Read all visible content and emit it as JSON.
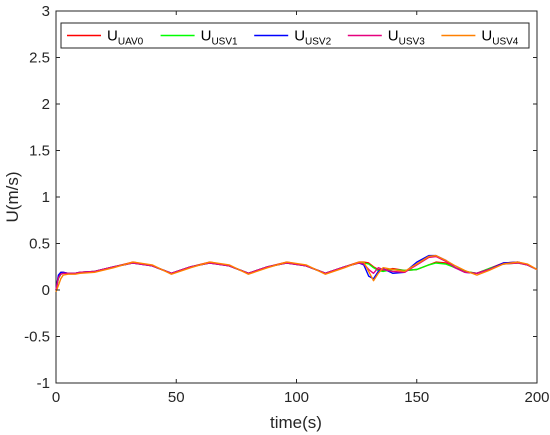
{
  "chart_data": {
    "type": "line",
    "xlabel": "time(s)",
    "ylabel": "U(m/s)",
    "xlim": [
      0,
      200
    ],
    "ylim": [
      -1,
      3
    ],
    "x_ticks": [
      "0",
      "50",
      "100",
      "150",
      "200"
    ],
    "y_ticks": [
      "-1",
      "-0.5",
      "0",
      "0.5",
      "1",
      "1.5",
      "2",
      "2.5",
      "3"
    ],
    "grid": false,
    "legend_placement": "top (horizontal)",
    "series": [
      {
        "name": "U",
        "subscript": "UAV0",
        "color": "#ff0000",
        "x": [
          0,
          1,
          2,
          3,
          5,
          8,
          10,
          16,
          24,
          32,
          40,
          48,
          56,
          64,
          72,
          80,
          88,
          96,
          104,
          112,
          120,
          126,
          128,
          130,
          132,
          134,
          136,
          140,
          145,
          150,
          155,
          158,
          162,
          166,
          170,
          175,
          180,
          186,
          192,
          196,
          200
        ],
        "y": [
          0.0,
          0.15,
          0.19,
          0.19,
          0.18,
          0.18,
          0.19,
          0.2,
          0.25,
          0.3,
          0.26,
          0.18,
          0.25,
          0.3,
          0.26,
          0.18,
          0.25,
          0.3,
          0.26,
          0.18,
          0.25,
          0.3,
          0.3,
          0.29,
          0.25,
          0.22,
          0.21,
          0.23,
          0.21,
          0.22,
          0.27,
          0.3,
          0.29,
          0.24,
          0.2,
          0.18,
          0.23,
          0.29,
          0.3,
          0.27,
          0.22
        ]
      },
      {
        "name": "U",
        "subscript": "USV1",
        "color": "#00ff00",
        "x": [
          0,
          1,
          2,
          3,
          5,
          8,
          10,
          16,
          24,
          32,
          40,
          48,
          56,
          64,
          72,
          80,
          88,
          96,
          104,
          112,
          120,
          126,
          128,
          130,
          132,
          134,
          136,
          140,
          145,
          150,
          155,
          158,
          162,
          166,
          170,
          175,
          180,
          186,
          192,
          196,
          200
        ],
        "y": [
          0.0,
          0.12,
          0.17,
          0.18,
          0.18,
          0.18,
          0.19,
          0.2,
          0.25,
          0.29,
          0.26,
          0.18,
          0.25,
          0.29,
          0.26,
          0.18,
          0.25,
          0.29,
          0.26,
          0.18,
          0.25,
          0.29,
          0.29,
          0.28,
          0.24,
          0.21,
          0.2,
          0.22,
          0.21,
          0.22,
          0.27,
          0.29,
          0.28,
          0.24,
          0.2,
          0.18,
          0.23,
          0.28,
          0.29,
          0.27,
          0.22
        ]
      },
      {
        "name": "U",
        "subscript": "USV2",
        "color": "#0000ff",
        "x": [
          0,
          1,
          2,
          3,
          5,
          8,
          10,
          16,
          24,
          32,
          40,
          48,
          56,
          64,
          72,
          80,
          88,
          96,
          104,
          112,
          120,
          126,
          128,
          130,
          132,
          134,
          136,
          140,
          145,
          150,
          155,
          158,
          162,
          166,
          170,
          175,
          180,
          186,
          192,
          196,
          200
        ],
        "y": [
          0.0,
          0.16,
          0.19,
          0.19,
          0.18,
          0.18,
          0.19,
          0.2,
          0.25,
          0.29,
          0.26,
          0.18,
          0.25,
          0.29,
          0.26,
          0.18,
          0.25,
          0.29,
          0.26,
          0.18,
          0.25,
          0.29,
          0.27,
          0.15,
          0.12,
          0.2,
          0.23,
          0.18,
          0.19,
          0.3,
          0.37,
          0.37,
          0.32,
          0.24,
          0.19,
          0.18,
          0.22,
          0.29,
          0.3,
          0.27,
          0.22
        ]
      },
      {
        "name": "U",
        "subscript": "USV3",
        "color": "#e6007e",
        "x": [
          0,
          1,
          2,
          3,
          5,
          8,
          10,
          16,
          24,
          32,
          40,
          48,
          56,
          64,
          72,
          80,
          88,
          96,
          104,
          112,
          120,
          126,
          128,
          130,
          132,
          134,
          136,
          140,
          145,
          150,
          155,
          158,
          162,
          166,
          170,
          175,
          180,
          186,
          192,
          196,
          200
        ],
        "y": [
          0.0,
          0.13,
          0.17,
          0.18,
          0.18,
          0.18,
          0.19,
          0.2,
          0.25,
          0.29,
          0.26,
          0.18,
          0.25,
          0.29,
          0.26,
          0.18,
          0.25,
          0.29,
          0.26,
          0.18,
          0.25,
          0.29,
          0.28,
          0.22,
          0.18,
          0.24,
          0.22,
          0.2,
          0.19,
          0.27,
          0.35,
          0.36,
          0.31,
          0.24,
          0.19,
          0.18,
          0.22,
          0.28,
          0.29,
          0.27,
          0.22
        ]
      },
      {
        "name": "U",
        "subscript": "USV4",
        "color": "#ff8000",
        "x": [
          0,
          1,
          2,
          3,
          5,
          8,
          10,
          16,
          24,
          32,
          40,
          48,
          56,
          64,
          72,
          80,
          88,
          96,
          104,
          112,
          120,
          126,
          128,
          130,
          132,
          134,
          136,
          140,
          145,
          150,
          155,
          158,
          162,
          166,
          170,
          175,
          180,
          186,
          192,
          196,
          200
        ],
        "y": [
          -0.02,
          0.05,
          0.12,
          0.16,
          0.17,
          0.17,
          0.18,
          0.19,
          0.24,
          0.3,
          0.27,
          0.17,
          0.24,
          0.3,
          0.27,
          0.17,
          0.24,
          0.3,
          0.27,
          0.17,
          0.24,
          0.3,
          0.3,
          0.2,
          0.1,
          0.18,
          0.24,
          0.22,
          0.2,
          0.28,
          0.36,
          0.37,
          0.32,
          0.26,
          0.21,
          0.16,
          0.21,
          0.28,
          0.3,
          0.28,
          0.22
        ]
      }
    ]
  }
}
